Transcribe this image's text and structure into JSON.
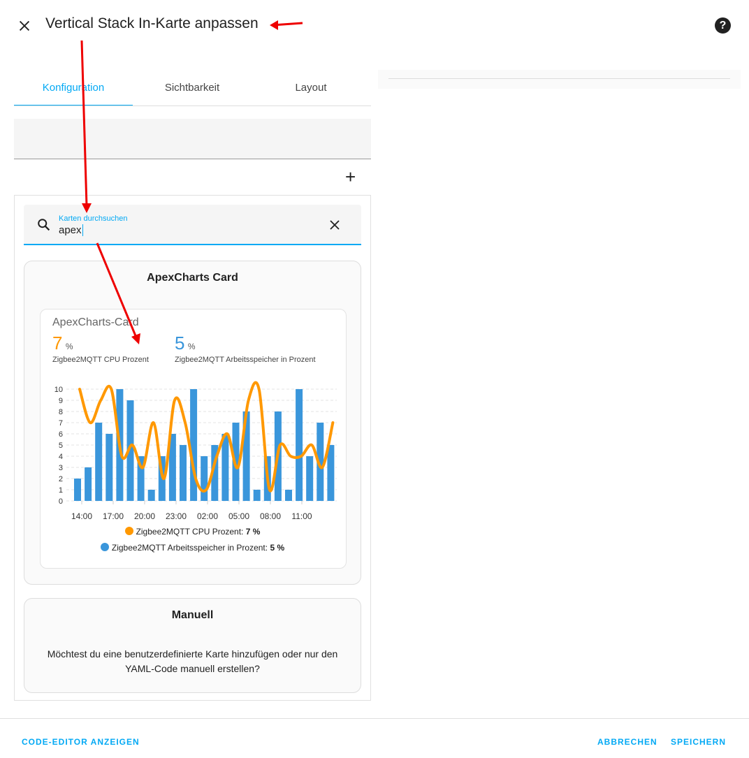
{
  "header": {
    "title": "Vertical Stack In-Karte anpassen",
    "close_icon": "close-icon",
    "help_icon": "help-circle-icon"
  },
  "tabs": [
    {
      "label": "Konfiguration",
      "active": true
    },
    {
      "label": "Sichtbarkeit"
    },
    {
      "label": "Layout"
    }
  ],
  "search": {
    "label": "Karten durchsuchen",
    "value": "apex"
  },
  "cards": {
    "apex": {
      "heading": "ApexCharts Card",
      "preview_title": "ApexCharts-Card",
      "stat1": {
        "value": "7",
        "unit": "%",
        "name": "Zigbee2MQTT CPU Prozent",
        "color": "#ff9800"
      },
      "stat2": {
        "value": "5",
        "unit": "%",
        "name": "Zigbee2MQTT Arbeitsspeicher in Prozent",
        "color": "#3a96db"
      },
      "legend": [
        {
          "label": "Zigbee2MQTT CPU Prozent:",
          "value": "7 %",
          "color": "#ff9800"
        },
        {
          "label": "Zigbee2MQTT Arbeitsspeicher in Prozent:",
          "value": "5 %",
          "color": "#3a96db"
        }
      ]
    },
    "manual": {
      "heading": "Manuell",
      "text": "Möchtest du eine benutzerdefinierte Karte hinzufügen oder nur den YAML-Code manuell erstellen?"
    }
  },
  "footer": {
    "code_editor": "CODE-EDITOR ANZEIGEN",
    "cancel": "ABBRECHEN",
    "save": "SPEICHERN"
  },
  "chart_data": {
    "type": "bar+line",
    "ylim": [
      0,
      10
    ],
    "yticks": [
      0,
      1,
      2,
      3,
      4,
      5,
      6,
      7,
      8,
      9,
      10
    ],
    "xticks": [
      "14:00",
      "17:00",
      "20:00",
      "23:00",
      "02:00",
      "05:00",
      "08:00",
      "11:00"
    ],
    "grid": true,
    "legend": "bottom",
    "series": [
      {
        "name": "Zigbee2MQTT CPU Prozent",
        "type": "line",
        "color": "#ff9800",
        "values": [
          10,
          7,
          9,
          10,
          4,
          5,
          3,
          7,
          2,
          9,
          7,
          2,
          1,
          4,
          6,
          3,
          9,
          10,
          1,
          5,
          4,
          4,
          5,
          3,
          7
        ]
      },
      {
        "name": "Zigbee2MQTT Arbeitsspeicher in Prozent",
        "type": "bar",
        "color": "#3a96db",
        "values": [
          2,
          3,
          7,
          6,
          10,
          9,
          4,
          1,
          4,
          6,
          5,
          10,
          4,
          5,
          6,
          7,
          8,
          1,
          4,
          8,
          1,
          10,
          4,
          7,
          5
        ]
      }
    ]
  }
}
